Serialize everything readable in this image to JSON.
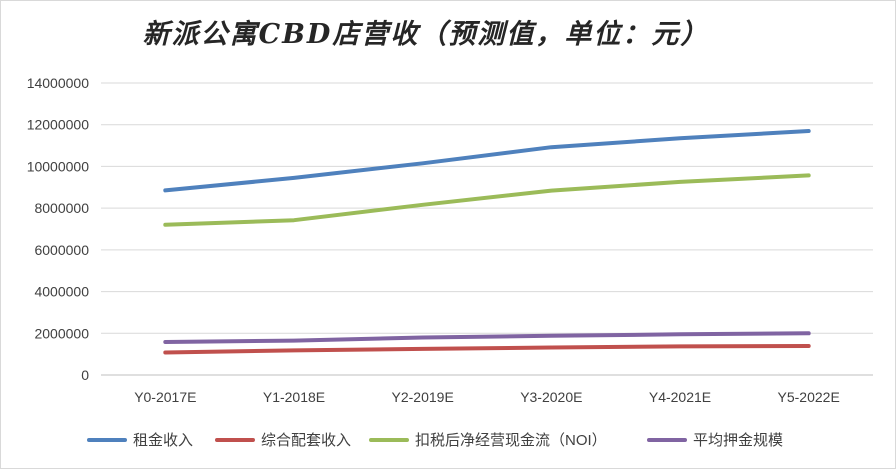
{
  "chart_data": {
    "type": "line",
    "title": "新派公寓CBD店营收（预测值，单位：元）",
    "categories": [
      "Y0-2017E",
      "Y1-2018E",
      "Y2-2019E",
      "Y3-2020E",
      "Y4-2021E",
      "Y5-2022E"
    ],
    "ylim": [
      0,
      14000000
    ],
    "yticks": [
      "0",
      "2000000",
      "4000000",
      "6000000",
      "8000000",
      "10000000",
      "12000000",
      "14000000"
    ],
    "grid": true,
    "legend_position": "bottom",
    "series": [
      {
        "name": "租金收入",
        "color": "#4f81bd",
        "values": [
          8850000,
          9450000,
          10150000,
          10920000,
          11350000,
          11700000
        ]
      },
      {
        "name": "综合配套收入",
        "color": "#c0504d",
        "values": [
          1080000,
          1180000,
          1250000,
          1320000,
          1370000,
          1390000
        ]
      },
      {
        "name": "扣税后净经营现金流（NOI）",
        "color": "#9bbb59",
        "values": [
          7200000,
          7420000,
          8160000,
          8840000,
          9260000,
          9570000
        ]
      },
      {
        "name": "平均押金规模",
        "color": "#8064a2",
        "values": [
          1580000,
          1650000,
          1800000,
          1880000,
          1950000,
          2000000
        ]
      }
    ]
  }
}
